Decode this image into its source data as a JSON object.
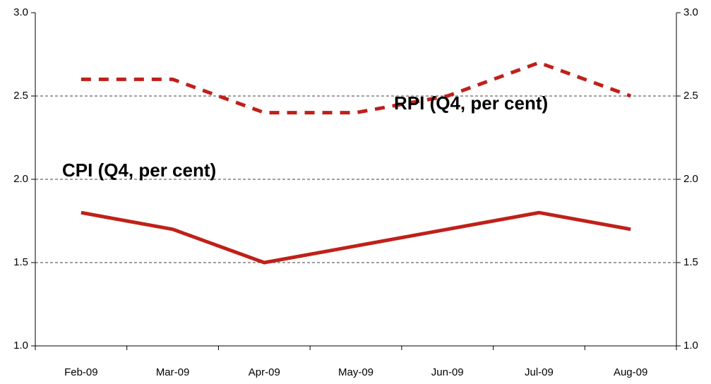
{
  "chart_data": {
    "type": "line",
    "categories": [
      "Feb-09",
      "Mar-09",
      "Apr-09",
      "May-09",
      "Jun-09",
      "Jul-09",
      "Aug-09"
    ],
    "series": [
      {
        "name": "RPI (Q4, per cent)",
        "color": "#c0201a",
        "dashed": true,
        "values": [
          2.6,
          2.6,
          2.4,
          2.4,
          2.5,
          2.7,
          2.5
        ]
      },
      {
        "name": "CPI (Q4, per cent)",
        "color": "#c0201a",
        "dashed": false,
        "values": [
          1.8,
          1.7,
          1.5,
          1.6,
          1.7,
          1.8,
          1.7
        ]
      }
    ],
    "ylim": [
      1,
      3
    ],
    "yticks": [
      {
        "value": 1,
        "label": "1.0"
      },
      {
        "value": 1.5,
        "label": "1.5"
      },
      {
        "value": 2,
        "label": "2.0"
      },
      {
        "value": 2.5,
        "label": "2.5"
      },
      {
        "value": 3,
        "label": "3.0"
      }
    ],
    "y2lim": [
      1,
      3
    ],
    "y2ticks": [
      {
        "value": 1,
        "label": "1.0"
      },
      {
        "value": 1.5,
        "label": "1.5"
      },
      {
        "value": 2,
        "label": "2.0"
      },
      {
        "value": 2.5,
        "label": "2.5"
      },
      {
        "value": 3,
        "label": "3.0"
      }
    ],
    "grid": true
  }
}
